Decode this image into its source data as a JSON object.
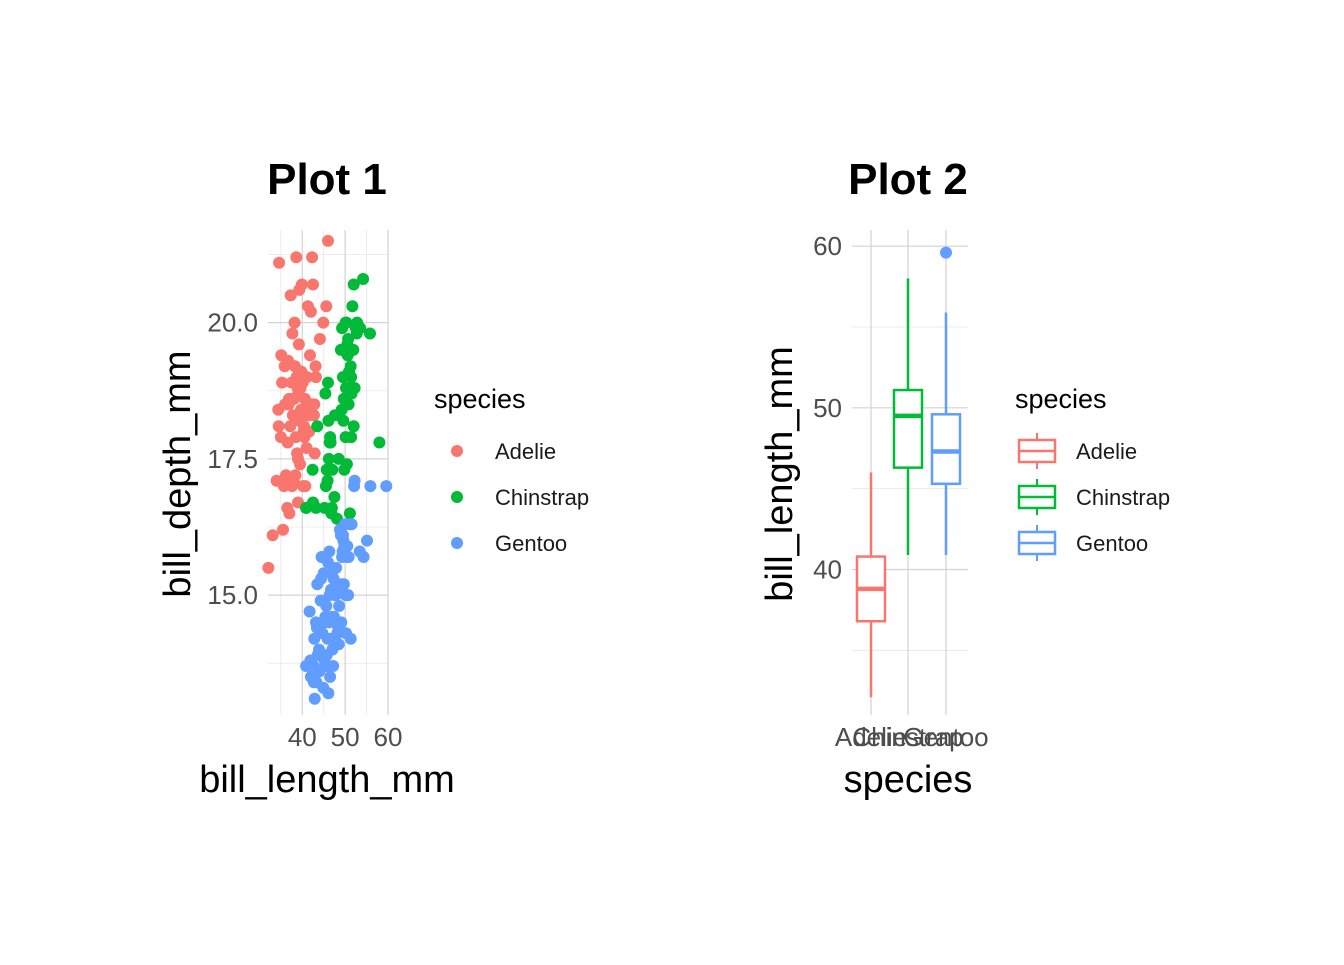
{
  "colors": {
    "Adelie": "#F8766D",
    "Chinstrap": "#00BA38",
    "Gentoo": "#619CFF"
  },
  "chart_data": [
    {
      "type": "scatter",
      "title": "Plot 1",
      "xlabel": "bill_length_mm",
      "ylabel": "bill_depth_mm",
      "xlim": [
        32,
        60
      ],
      "ylim": [
        12.8,
        21.7
      ],
      "xticks": [
        40,
        50,
        60
      ],
      "xtick_labels": [
        "40",
        "50",
        "60"
      ],
      "yticks": [
        15.0,
        17.5,
        20.0
      ],
      "ytick_labels": [
        "15.0",
        "17.5",
        "20.0"
      ],
      "grid": true,
      "legend": {
        "title": "species",
        "position": "right",
        "entries": [
          "Adelie",
          "Chinstrap",
          "Gentoo"
        ]
      },
      "series": [
        {
          "name": "Adelie",
          "points": [
            [
              32.1,
              15.5
            ],
            [
              33.1,
              16.1
            ],
            [
              34.0,
              17.1
            ],
            [
              34.5,
              18.1
            ],
            [
              34.6,
              21.1
            ],
            [
              35.0,
              17.9
            ],
            [
              35.3,
              18.9
            ],
            [
              35.5,
              16.2
            ],
            [
              35.7,
              17.0
            ],
            [
              35.9,
              19.2
            ],
            [
              36.0,
              18.5
            ],
            [
              36.2,
              17.2
            ],
            [
              36.4,
              17.1
            ],
            [
              36.6,
              17.8
            ],
            [
              36.8,
              18.5
            ],
            [
              37.0,
              16.5
            ],
            [
              37.2,
              18.1
            ],
            [
              37.3,
              20.5
            ],
            [
              37.5,
              18.9
            ],
            [
              37.7,
              19.8
            ],
            [
              37.8,
              18.3
            ],
            [
              38.0,
              17.1
            ],
            [
              38.1,
              18.6
            ],
            [
              38.2,
              20.0
            ],
            [
              38.5,
              17.9
            ],
            [
              38.6,
              21.2
            ],
            [
              38.8,
              17.6
            ],
            [
              38.9,
              18.8
            ],
            [
              39.0,
              17.5
            ],
            [
              39.1,
              18.7
            ],
            [
              39.2,
              19.6
            ],
            [
              39.3,
              20.6
            ],
            [
              39.5,
              17.4
            ],
            [
              39.6,
              18.8
            ],
            [
              39.7,
              18.4
            ],
            [
              39.8,
              19.1
            ],
            [
              40.2,
              17.0
            ],
            [
              40.3,
              18.0
            ],
            [
              40.5,
              17.9
            ],
            [
              40.6,
              18.6
            ],
            [
              40.8,
              18.4
            ],
            [
              40.9,
              16.6
            ],
            [
              41.1,
              19.0
            ],
            [
              41.3,
              20.3
            ],
            [
              41.4,
              18.5
            ],
            [
              41.5,
              18.3
            ],
            [
              41.8,
              19.4
            ],
            [
              42.0,
              20.2
            ],
            [
              42.2,
              18.5
            ],
            [
              42.5,
              20.7
            ],
            [
              42.7,
              18.3
            ],
            [
              42.8,
              18.5
            ],
            [
              42.9,
              17.6
            ],
            [
              43.1,
              19.2
            ],
            [
              43.2,
              19.0
            ],
            [
              44.1,
              19.7
            ],
            [
              44.9,
              20.0
            ],
            [
              45.6,
              20.3
            ],
            [
              46.0,
              21.5
            ],
            [
              38.4,
              17.2
            ],
            [
              37.6,
              17.0
            ],
            [
              36.9,
              18.6
            ],
            [
              35.1,
              19.4
            ],
            [
              40.1,
              18.9
            ],
            [
              40.7,
              17.0
            ],
            [
              41.0,
              17.7
            ],
            [
              39.4,
              18.2
            ],
            [
              38.7,
              19.0
            ],
            [
              39.9,
              20.7
            ],
            [
              37.9,
              18.6
            ],
            [
              36.5,
              16.6
            ],
            [
              40.4,
              18.1
            ],
            [
              34.4,
              18.4
            ],
            [
              36.7,
              19.3
            ],
            [
              41.6,
              18.0
            ],
            [
              38.3,
              19.2
            ],
            [
              39.0,
              16.7
            ],
            [
              42.3,
              21.2
            ]
          ]
        },
        {
          "name": "Chinstrap",
          "points": [
            [
              40.9,
              16.6
            ],
            [
              42.4,
              17.3
            ],
            [
              42.5,
              16.7
            ],
            [
              43.2,
              16.6
            ],
            [
              43.5,
              18.1
            ],
            [
              45.2,
              16.6
            ],
            [
              45.4,
              18.7
            ],
            [
              45.5,
              17.0
            ],
            [
              45.7,
              17.3
            ],
            [
              45.9,
              17.1
            ],
            [
              46.0,
              18.9
            ],
            [
              46.1,
              18.2
            ],
            [
              46.4,
              17.8
            ],
            [
              46.6,
              17.8
            ],
            [
              46.8,
              16.5
            ],
            [
              46.9,
              16.6
            ],
            [
              47.0,
              17.3
            ],
            [
              47.5,
              16.8
            ],
            [
              48.1,
              16.4
            ],
            [
              48.5,
              17.5
            ],
            [
              49.0,
              19.5
            ],
            [
              49.3,
              19.9
            ],
            [
              49.5,
              19.0
            ],
            [
              49.6,
              18.2
            ],
            [
              49.7,
              18.6
            ],
            [
              49.8,
              17.3
            ],
            [
              50.0,
              19.5
            ],
            [
              50.1,
              17.9
            ],
            [
              50.2,
              18.8
            ],
            [
              50.3,
              20.0
            ],
            [
              50.5,
              19.6
            ],
            [
              50.6,
              19.4
            ],
            [
              50.7,
              19.7
            ],
            [
              50.8,
              18.5
            ],
            [
              50.9,
              19.1
            ],
            [
              51.0,
              18.8
            ],
            [
              51.3,
              19.2
            ],
            [
              51.4,
              19.0
            ],
            [
              51.5,
              18.7
            ],
            [
              51.7,
              20.3
            ],
            [
              51.9,
              19.5
            ],
            [
              52.0,
              18.1
            ],
            [
              52.2,
              18.8
            ],
            [
              52.5,
              19.9
            ],
            [
              52.7,
              19.8
            ],
            [
              52.8,
              20.0
            ],
            [
              53.5,
              19.9
            ],
            [
              54.2,
              20.8
            ],
            [
              55.8,
              19.8
            ],
            [
              58.0,
              17.8
            ],
            [
              50.4,
              17.4
            ],
            [
              49.2,
              18.4
            ],
            [
              51.1,
              16.5
            ],
            [
              46.5,
              17.9
            ],
            [
              50.1,
              20.0
            ],
            [
              52.0,
              20.7
            ],
            [
              49.7,
              18.6
            ],
            [
              47.6,
              18.3
            ],
            [
              46.2,
              17.5
            ],
            [
              51.4,
              17.9
            ]
          ]
        },
        {
          "name": "Gentoo",
          "points": [
            [
              40.9,
              13.7
            ],
            [
              41.7,
              14.7
            ],
            [
              42.0,
              13.5
            ],
            [
              42.6,
              13.7
            ],
            [
              42.8,
              14.2
            ],
            [
              42.9,
              13.1
            ],
            [
              43.2,
              14.5
            ],
            [
              43.3,
              13.4
            ],
            [
              43.4,
              14.4
            ],
            [
              43.5,
              15.2
            ],
            [
              43.6,
              13.9
            ],
            [
              43.8,
              13.9
            ],
            [
              44.0,
              13.6
            ],
            [
              44.4,
              15.3
            ],
            [
              44.5,
              15.7
            ],
            [
              44.9,
              13.3
            ],
            [
              45.0,
              15.4
            ],
            [
              45.1,
              14.5
            ],
            [
              45.2,
              13.8
            ],
            [
              45.3,
              13.7
            ],
            [
              45.4,
              14.6
            ],
            [
              45.5,
              13.7
            ],
            [
              45.7,
              13.9
            ],
            [
              45.8,
              14.6
            ],
            [
              46.1,
              13.2
            ],
            [
              46.2,
              14.5
            ],
            [
              46.3,
              15.8
            ],
            [
              46.4,
              15.0
            ],
            [
              46.5,
              13.5
            ],
            [
              46.6,
              14.2
            ],
            [
              46.8,
              15.4
            ],
            [
              46.9,
              14.6
            ],
            [
              47.2,
              13.7
            ],
            [
              47.3,
              15.3
            ],
            [
              47.4,
              14.6
            ],
            [
              47.5,
              14.2
            ],
            [
              47.6,
              14.5
            ],
            [
              47.7,
              15.0
            ],
            [
              47.8,
              15.0
            ],
            [
              48.1,
              15.1
            ],
            [
              48.2,
              14.3
            ],
            [
              48.4,
              14.4
            ],
            [
              48.5,
              14.1
            ],
            [
              48.7,
              15.1
            ],
            [
              48.8,
              16.2
            ],
            [
              49.0,
              16.1
            ],
            [
              49.1,
              14.5
            ],
            [
              49.2,
              15.2
            ],
            [
              49.3,
              15.7
            ],
            [
              49.4,
              15.8
            ],
            [
              49.5,
              16.1
            ],
            [
              49.6,
              16.0
            ],
            [
              49.8,
              15.9
            ],
            [
              50.0,
              16.3
            ],
            [
              50.1,
              15.0
            ],
            [
              50.2,
              14.3
            ],
            [
              50.4,
              15.7
            ],
            [
              50.5,
              15.9
            ],
            [
              50.7,
              15.0
            ],
            [
              50.8,
              15.7
            ],
            [
              51.1,
              16.3
            ],
            [
              51.3,
              14.2
            ],
            [
              51.5,
              16.3
            ],
            [
              52.1,
              17.0
            ],
            [
              52.2,
              17.1
            ],
            [
              53.4,
              15.8
            ],
            [
              54.3,
              15.7
            ],
            [
              55.1,
              16.0
            ],
            [
              55.9,
              17.0
            ],
            [
              59.6,
              17.0
            ],
            [
              44.3,
              14.9
            ],
            [
              45.6,
              14.8
            ],
            [
              47.0,
              14.0
            ],
            [
              48.6,
              14.8
            ],
            [
              43.9,
              14.0
            ],
            [
              46.0,
              15.6
            ],
            [
              49.7,
              15.2
            ],
            [
              45.9,
              14.2
            ],
            [
              47.9,
              15.5
            ],
            [
              44.7,
              14.3
            ],
            [
              42.7,
              13.4
            ],
            [
              46.7,
              15.1
            ],
            [
              48.3,
              15.2
            ],
            [
              41.9,
              13.8
            ]
          ]
        }
      ]
    },
    {
      "type": "box",
      "title": "Plot 2",
      "xlabel": "species",
      "ylabel": "bill_length_mm",
      "categories": [
        "Adelie",
        "Chinstrap",
        "Gentoo"
      ],
      "ylim": [
        31,
        61
      ],
      "yticks": [
        40,
        50,
        60
      ],
      "ytick_labels": [
        "40",
        "50",
        "60"
      ],
      "grid": true,
      "legend": {
        "title": "species",
        "position": "right",
        "entries": [
          "Adelie",
          "Chinstrap",
          "Gentoo"
        ]
      },
      "boxes": [
        {
          "name": "Adelie",
          "min": 32.1,
          "q1": 36.8,
          "median": 38.8,
          "q3": 40.8,
          "max": 46.0,
          "outliers": []
        },
        {
          "name": "Chinstrap",
          "min": 40.9,
          "q1": 46.3,
          "median": 49.5,
          "q3": 51.1,
          "max": 58.0,
          "outliers": []
        },
        {
          "name": "Gentoo",
          "min": 40.9,
          "q1": 45.3,
          "median": 47.3,
          "q3": 49.6,
          "max": 55.9,
          "outliers": [
            59.6
          ]
        }
      ]
    }
  ]
}
